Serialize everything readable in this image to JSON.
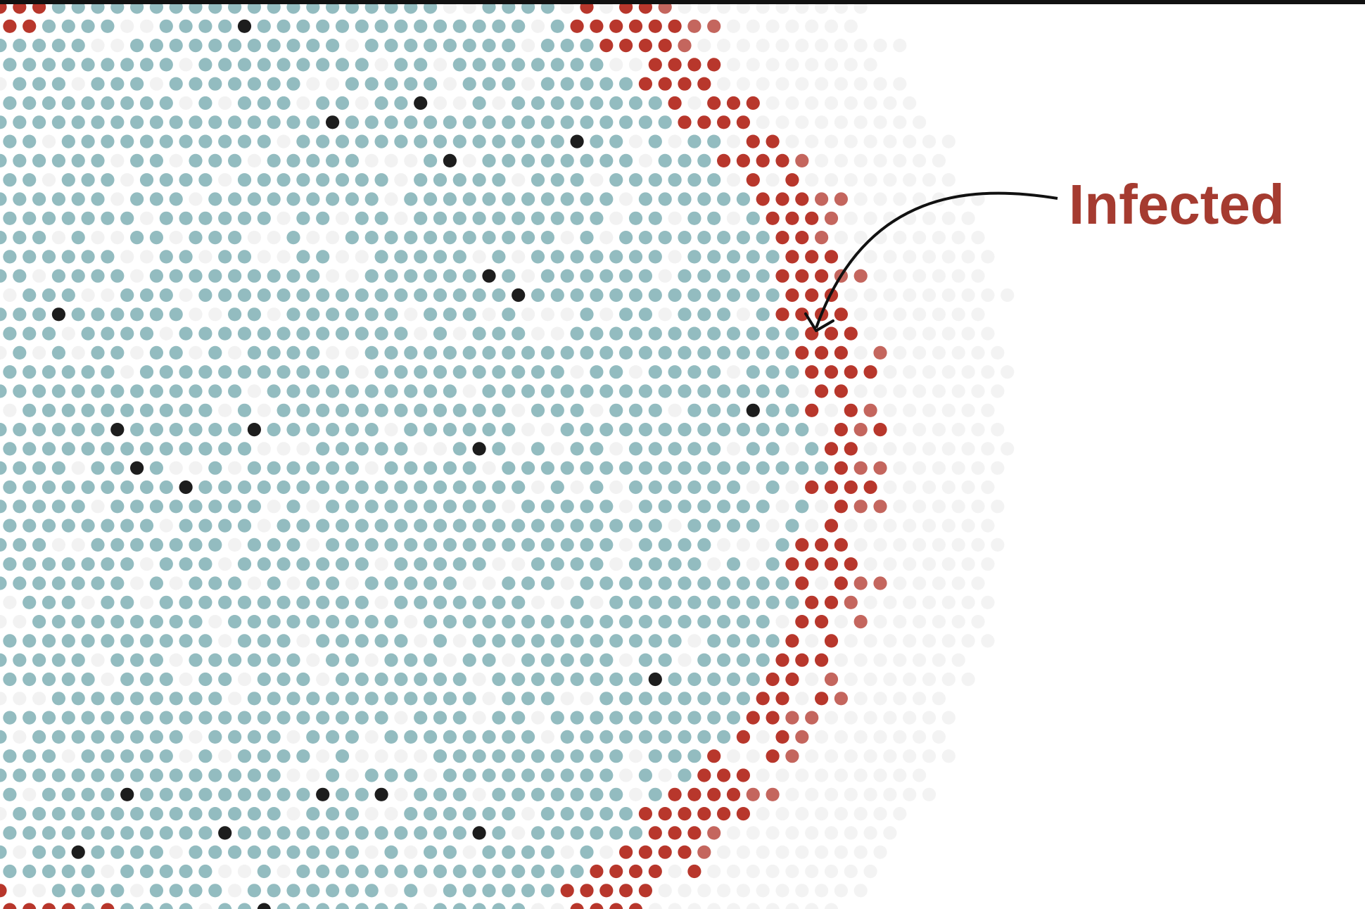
{
  "annotation": {
    "label": "Infected"
  }
}
